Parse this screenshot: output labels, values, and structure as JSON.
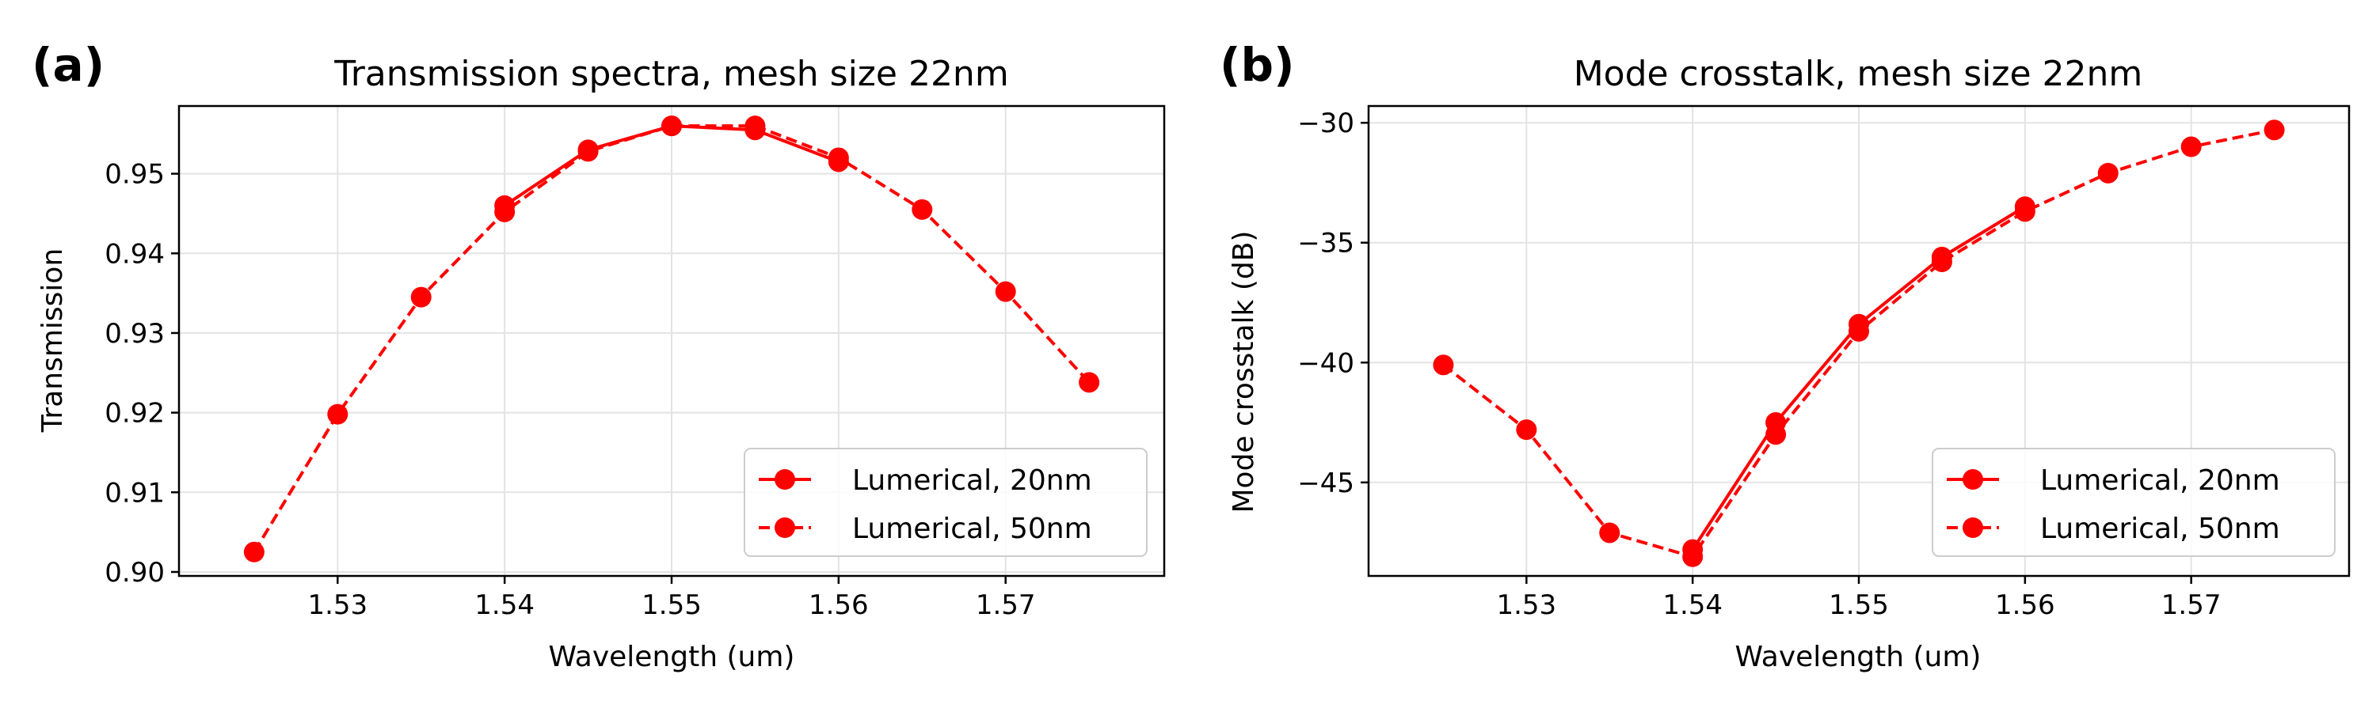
{
  "colors": {
    "series": "#ff0000"
  },
  "chart_data": [
    {
      "panel_label": "(a)",
      "type": "line",
      "title": "Transmission spectra, mesh size 22nm",
      "xlabel": "Wavelength (um)",
      "ylabel": "Transmission",
      "xlim": [
        1.5205,
        1.5795
      ],
      "ylim": [
        0.8995,
        0.9585
      ],
      "xticks": [
        1.53,
        1.54,
        1.55,
        1.56,
        1.57
      ],
      "xtick_labels": [
        "1.53",
        "1.54",
        "1.55",
        "1.56",
        "1.57"
      ],
      "yticks": [
        0.9,
        0.91,
        0.92,
        0.93,
        0.94,
        0.95
      ],
      "ytick_labels": [
        "0.90",
        "0.91",
        "0.92",
        "0.93",
        "0.94",
        "0.95"
      ],
      "grid": true,
      "legend_position": "lower right",
      "series": [
        {
          "name": "Lumerical, 20nm",
          "style": "solid",
          "x": [
            1.54,
            1.545,
            1.55,
            1.555,
            1.56
          ],
          "y": [
            0.946,
            0.953,
            0.956,
            0.9555,
            0.9515
          ]
        },
        {
          "name": "Lumerical, 50nm",
          "style": "dashed",
          "x": [
            1.525,
            1.53,
            1.535,
            1.54,
            1.545,
            1.55,
            1.555,
            1.56,
            1.565,
            1.57,
            1.575
          ],
          "y": [
            0.9025,
            0.9198,
            0.9345,
            0.9452,
            0.9528,
            0.956,
            0.956,
            0.952,
            0.9455,
            0.9352,
            0.9238
          ]
        }
      ]
    },
    {
      "panel_label": "(b)",
      "type": "line",
      "title": "Mode crosstalk, mesh size 22nm",
      "xlabel": "Wavelength (um)",
      "ylabel": "Mode crosstalk (dB)",
      "xlim": [
        1.5205,
        1.5795
      ],
      "ylim": [
        -48.9,
        -29.3
      ],
      "xticks": [
        1.53,
        1.54,
        1.55,
        1.56,
        1.57
      ],
      "xtick_labels": [
        "1.53",
        "1.54",
        "1.55",
        "1.56",
        "1.57"
      ],
      "yticks": [
        -45,
        -40,
        -35,
        -30
      ],
      "ytick_labels": [
        "−45",
        "−40",
        "−35",
        "−30"
      ],
      "grid": true,
      "legend_position": "lower right",
      "series": [
        {
          "name": "Lumerical, 20nm",
          "style": "solid",
          "x": [
            1.54,
            1.545,
            1.55,
            1.555,
            1.56
          ],
          "y": [
            -47.8,
            -42.5,
            -38.4,
            -35.6,
            -33.5
          ]
        },
        {
          "name": "Lumerical, 50nm",
          "style": "dashed",
          "x": [
            1.525,
            1.53,
            1.535,
            1.54,
            1.545,
            1.55,
            1.555,
            1.56,
            1.565,
            1.57,
            1.575
          ],
          "y": [
            -40.1,
            -42.8,
            -47.1,
            -48.1,
            -43.0,
            -38.7,
            -35.8,
            -33.7,
            -32.1,
            -31.0,
            -30.3
          ]
        }
      ]
    }
  ]
}
